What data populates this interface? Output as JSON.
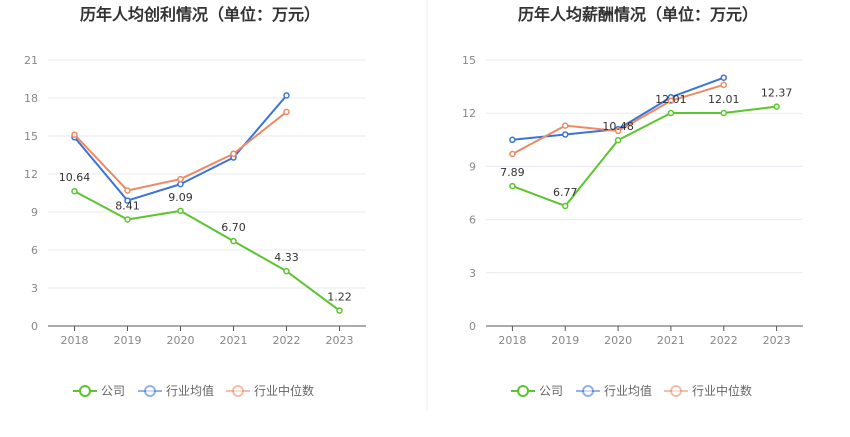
{
  "chart_data": [
    {
      "type": "line",
      "title": "历年人均创利情况（单位：万元）",
      "categories": [
        "2018",
        "2019",
        "2020",
        "2021",
        "2022",
        "2023"
      ],
      "ylim": [
        0,
        21
      ],
      "yticks": [
        0,
        3,
        6,
        9,
        12,
        15,
        18,
        21
      ],
      "grid": true,
      "legend_position": "bottom",
      "series": [
        {
          "name": "公司",
          "color": "#5cc42f",
          "values": [
            10.64,
            8.41,
            9.09,
            6.7,
            4.33,
            1.22
          ],
          "labels": [
            "10.64",
            "8.41",
            "9.09",
            "6.70",
            "4.33",
            "1.22"
          ]
        },
        {
          "name": "行业均值",
          "color": "#3a74d9",
          "values": [
            14.9,
            9.9,
            11.2,
            13.3,
            18.2,
            null
          ]
        },
        {
          "name": "行业中位数",
          "color": "#ee8a62",
          "values": [
            15.1,
            10.7,
            11.6,
            13.6,
            16.9,
            null
          ]
        }
      ]
    },
    {
      "type": "line",
      "title": "历年人均薪酬情况（单位：万元）",
      "categories": [
        "2018",
        "2019",
        "2020",
        "2021",
        "2022",
        "2023"
      ],
      "ylim": [
        0,
        15
      ],
      "yticks": [
        0,
        3,
        6,
        9,
        12,
        15
      ],
      "grid": true,
      "legend_position": "bottom",
      "series": [
        {
          "name": "公司",
          "color": "#5cc42f",
          "values": [
            7.89,
            6.77,
            10.48,
            12.01,
            12.01,
            12.37
          ],
          "labels": [
            "7.89",
            "6.77",
            "10.48",
            "12.01",
            "12.01",
            "12.37"
          ]
        },
        {
          "name": "行业均值",
          "color": "#3a74d9",
          "values": [
            10.5,
            10.8,
            11.1,
            12.9,
            14.0,
            null
          ]
        },
        {
          "name": "行业中位数",
          "color": "#ee8a62",
          "values": [
            9.7,
            11.3,
            11.0,
            12.7,
            13.6,
            null
          ]
        }
      ]
    }
  ]
}
